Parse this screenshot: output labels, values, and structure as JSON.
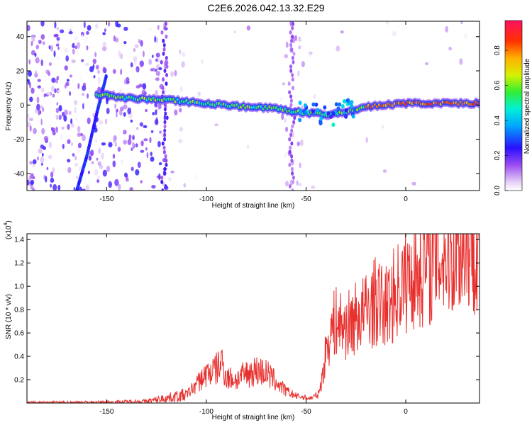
{
  "title": "C2E6.2026.042.13.32.E29",
  "chart_data": [
    {
      "type": "heatmap",
      "name": "spectrogram",
      "xlabel": "Height of straight line (km)",
      "ylabel": "Frequency (Hz)",
      "xlim": [
        -190,
        37
      ],
      "ylim": [
        -50,
        49
      ],
      "xticks": [
        -150,
        -100,
        -50,
        0
      ],
      "yticks": [
        -40,
        -20,
        0,
        20,
        40
      ],
      "colorbar": {
        "label": "Normalized spectral amplitude",
        "range": [
          0.0,
          0.97
        ],
        "ticks": [
          0.0,
          0.2,
          0.4,
          0.6,
          0.8
        ]
      },
      "features": [
        {
          "desc": "main trace",
          "x": [
            -152,
            -140,
            -120,
            -100,
            -80,
            -65,
            -55,
            -45,
            -40,
            -30,
            -20,
            -10,
            0,
            20,
            37
          ],
          "y": [
            6,
            4,
            3,
            1,
            -1,
            -2,
            -4,
            -5,
            -6,
            -4,
            -1,
            0,
            1,
            1,
            1
          ]
        },
        {
          "desc": "diagonal streak",
          "x": [
            -165,
            -160,
            -155,
            -150
          ],
          "y": [
            -50,
            -30,
            -5,
            18
          ]
        }
      ]
    },
    {
      "type": "line",
      "name": "snr",
      "xlabel": "Height of straight line (km)",
      "ylabel": "SNR (10 * v/v)",
      "yscale_label": "(x10",
      "yscale_exp": "4",
      "xlim": [
        -190,
        37
      ],
      "ylim": [
        0,
        14500
      ],
      "xticks": [
        -150,
        -100,
        -50,
        0
      ],
      "yticks": [
        2000,
        4000,
        6000,
        8000,
        10000,
        12000,
        14000
      ],
      "ytick_labels": [
        "0.2",
        "0.4",
        "0.6",
        "0.8",
        "1.0",
        "1.2",
        "1.4"
      ],
      "series": [
        {
          "name": "SNR",
          "color": "#e8312f",
          "x": [
            -190,
            -150,
            -130,
            -110,
            -100,
            -95,
            -92,
            -90,
            -85,
            -80,
            -75,
            -70,
            -65,
            -60,
            -55,
            -48,
            -44,
            -42,
            -40,
            -38,
            -35,
            -30,
            -25,
            -20,
            -15,
            -10,
            -5,
            0,
            5,
            10,
            15,
            20,
            25,
            30,
            37
          ],
          "y": [
            50,
            80,
            150,
            700,
            2500,
            2900,
            3500,
            2200,
            2000,
            2500,
            2800,
            2600,
            1800,
            1000,
            600,
            400,
            700,
            2000,
            4500,
            6000,
            7000,
            6500,
            7300,
            7800,
            8700,
            8200,
            9500,
            10500,
            11200,
            11800,
            12300,
            12800,
            13200,
            13500,
            13700
          ]
        }
      ]
    }
  ]
}
